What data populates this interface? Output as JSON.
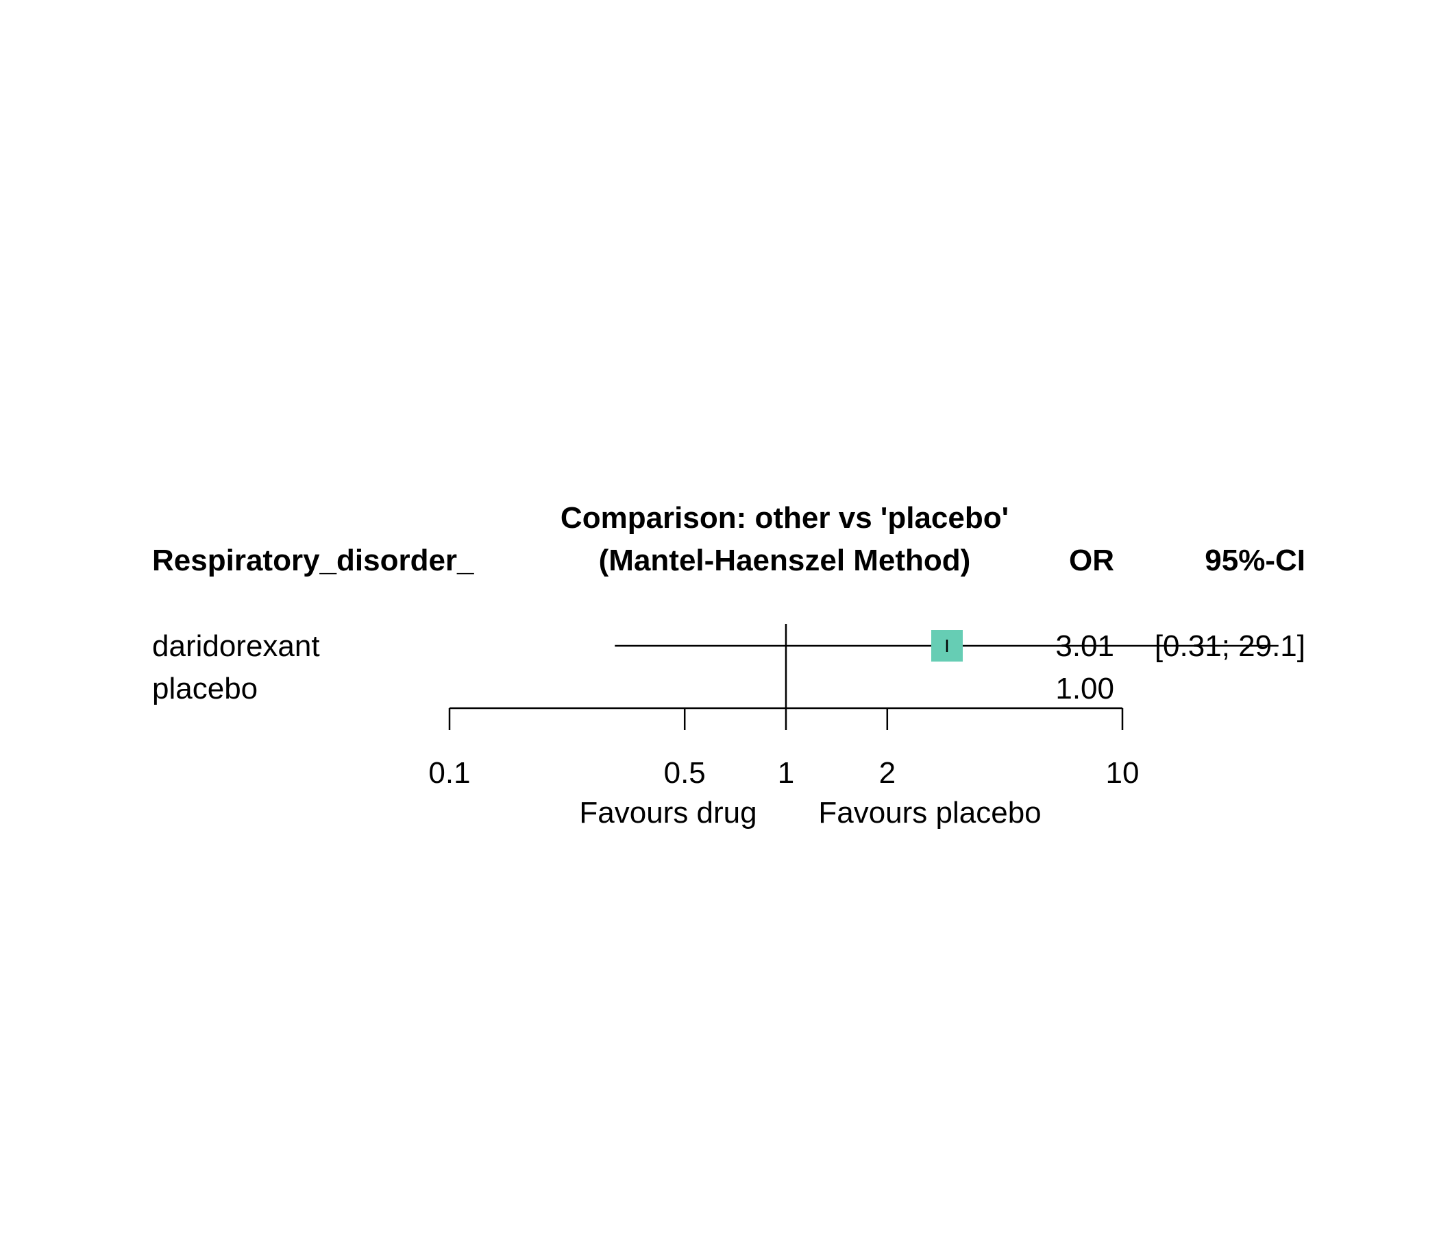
{
  "chart_data": {
    "type": "forest",
    "scale": "log",
    "title": "Comparison: other vs 'placebo'",
    "subtitle": "(Mantel-Haenszel Method)",
    "headers": {
      "label": "Respiratory_disorder_",
      "estimate": "OR",
      "ci": "95%-CI"
    },
    "rows": [
      {
        "label": "daridorexant",
        "or": 3.01,
        "lower": 0.31,
        "upper": 29.1,
        "or_text": "3.01",
        "ci_text": "[0.31; 29.1]"
      },
      {
        "label": "placebo",
        "or": 1.0,
        "lower": null,
        "upper": null,
        "or_text": "1.00",
        "ci_text": ""
      }
    ],
    "x_ticks": [
      0.1,
      0.5,
      1,
      2,
      10
    ],
    "x_tick_labels": [
      "0.1",
      "0.5",
      "1",
      "2",
      "10"
    ],
    "reference_line": 1,
    "favours_left": "Favours drug",
    "favours_right": "Favours placebo",
    "marker_color": "#66CDB4"
  }
}
